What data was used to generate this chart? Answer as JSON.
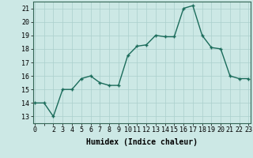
{
  "x": [
    0,
    1,
    2,
    3,
    4,
    5,
    6,
    7,
    8,
    9,
    10,
    11,
    12,
    13,
    14,
    15,
    16,
    17,
    18,
    19,
    20,
    21,
    22,
    23
  ],
  "y": [
    14,
    14,
    13,
    15,
    15,
    15.8,
    16,
    15.5,
    15.3,
    15.3,
    17.5,
    18.2,
    18.3,
    19,
    18.9,
    18.9,
    21,
    21.2,
    19,
    18.1,
    18,
    16,
    15.8,
    15.8
  ],
  "line_color": "#1a6b5a",
  "marker": "+",
  "markersize": 3.5,
  "linewidth": 1.0,
  "bg_color": "#cce8e5",
  "grid_color": "#aacfcc",
  "xlabel": "Humidex (Indice chaleur)",
  "ylim": [
    12.5,
    21.5
  ],
  "xlim": [
    -0.2,
    23.2
  ],
  "yticks": [
    13,
    14,
    15,
    16,
    17,
    18,
    19,
    20,
    21
  ],
  "xtick_labels": [
    "0",
    "",
    "2",
    "3",
    "4",
    "5",
    "6",
    "7",
    "8",
    "9",
    "10",
    "11",
    "12",
    "13",
    "14",
    "15",
    "16",
    "17",
    "18",
    "19",
    "20",
    "21",
    "22",
    "23"
  ],
  "xlabel_fontsize": 7,
  "tick_fontsize": 6,
  "markeredgewidth": 1.0
}
